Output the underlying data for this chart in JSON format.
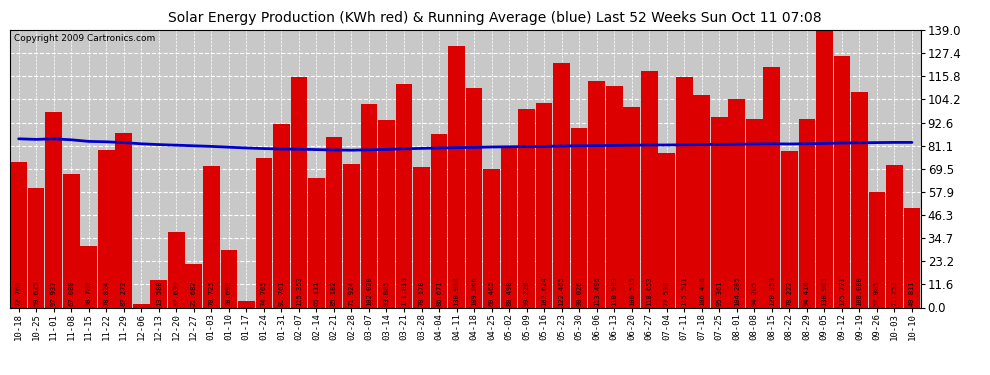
{
  "title": "Solar Energy Production (KWh red) & Running Average (blue) Last 52 Weeks Sun Oct 11 07:08",
  "copyright": "Copyright 2009 Cartronics.com",
  "bar_color": "#dd0000",
  "avg_color": "#0000cc",
  "background_color": "#ffffff",
  "plot_bg_color": "#c8c8c8",
  "grid_color": "#ffffff",
  "ylim": [
    0,
    139.0
  ],
  "yticks": [
    0.0,
    11.6,
    23.2,
    34.7,
    46.3,
    57.9,
    69.5,
    81.1,
    92.6,
    104.2,
    115.8,
    127.4,
    139.0
  ],
  "categories": [
    "10-18",
    "10-25",
    "11-01",
    "11-08",
    "11-15",
    "11-22",
    "11-29",
    "12-06",
    "12-13",
    "12-20",
    "12-27",
    "01-03",
    "01-10",
    "01-17",
    "01-24",
    "01-31",
    "02-07",
    "02-14",
    "02-21",
    "02-28",
    "03-07",
    "03-14",
    "03-21",
    "03-28",
    "04-04",
    "04-11",
    "04-18",
    "04-25",
    "05-02",
    "05-09",
    "05-16",
    "05-23",
    "05-30",
    "06-06",
    "06-13",
    "06-20",
    "06-27",
    "07-04",
    "07-11",
    "07-18",
    "07-25",
    "08-01",
    "08-08",
    "08-15",
    "08-22",
    "08-29",
    "09-05",
    "09-12",
    "09-19",
    "09-26",
    "10-03",
    "10-10"
  ],
  "values": [
    72.76,
    59.625,
    97.937,
    67.08,
    30.78,
    78.824,
    87.272,
    1.65,
    13.588,
    37.639,
    21.682,
    70.725,
    28.698,
    3.45,
    74.705,
    91.761,
    115.353,
    65.111,
    85.182,
    71.924,
    102.02,
    93.885,
    111.818,
    70.178,
    86.671,
    130.988,
    109.866,
    69.465,
    80.49,
    99.226,
    102.624,
    122.465,
    90.026,
    113.496,
    110.903,
    100.535,
    118.653,
    77.538,
    115.511,
    106.406,
    95.361,
    104.205,
    94.205,
    120.358,
    78.222,
    94.416,
    138.963,
    125.771,
    108.08,
    57.985,
    71.253,
    49.811
  ],
  "running_avg": [
    84.5,
    84.2,
    84.5,
    84.0,
    83.2,
    83.0,
    82.6,
    82.0,
    81.6,
    81.3,
    81.0,
    80.7,
    80.3,
    79.9,
    79.6,
    79.4,
    79.3,
    79.1,
    78.9,
    78.8,
    79.0,
    79.2,
    79.5,
    79.7,
    79.9,
    80.1,
    80.2,
    80.4,
    80.5,
    80.6,
    80.7,
    80.9,
    81.0,
    81.1,
    81.2,
    81.3,
    81.4,
    81.4,
    81.5,
    81.6,
    81.7,
    81.8,
    81.9,
    82.0,
    81.9,
    82.0,
    82.2,
    82.4,
    82.5,
    82.6,
    82.7,
    82.7
  ],
  "label_fontsize": 5.0,
  "tick_fontsize": 8.5,
  "xtick_fontsize": 6.5,
  "title_fontsize": 10,
  "copyright_fontsize": 6.5
}
